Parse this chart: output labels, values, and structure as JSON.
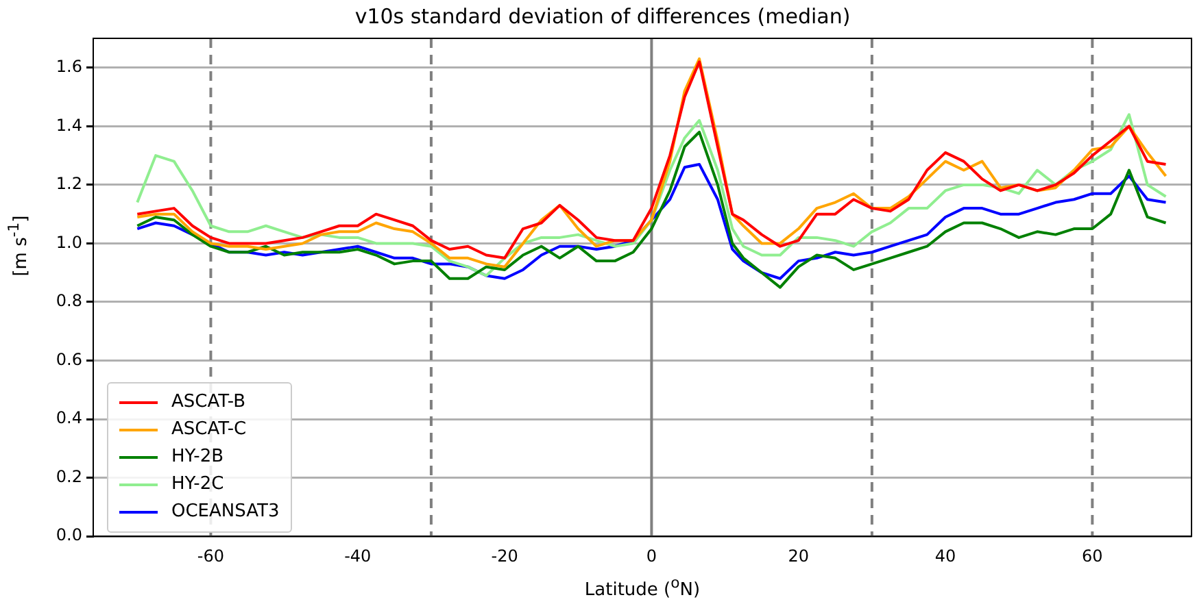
{
  "chart_data": {
    "type": "line",
    "title": "v10s standard deviation of differences (median)",
    "xlabel": "Latitude ($^{o}$N)",
    "ylabel": "[m s$^{-1}$]",
    "x": [
      -70,
      -67.5,
      -65,
      -62.5,
      -60,
      -57.5,
      -55,
      -52.5,
      -50,
      -47.5,
      -45,
      -42.5,
      -40,
      -37.5,
      -35,
      -32.5,
      -30,
      -27.5,
      -25,
      -22.5,
      -20,
      -17.5,
      -15,
      -12.5,
      -10,
      -7.5,
      -5,
      -2.5,
      0,
      2.5,
      4.5,
      6.5,
      9,
      11,
      12.5,
      15,
      17.5,
      20,
      22.5,
      25,
      27.5,
      30,
      32.5,
      35,
      37.5,
      40,
      42.5,
      45,
      47.5,
      50,
      52.5,
      55,
      57.5,
      60,
      62.5,
      65,
      67.5,
      70
    ],
    "series": [
      {
        "name": "ASCAT-B",
        "color": "#ff0000",
        "values": [
          1.1,
          1.11,
          1.12,
          1.06,
          1.02,
          1.0,
          1.0,
          1.0,
          1.01,
          1.02,
          1.04,
          1.06,
          1.06,
          1.1,
          1.08,
          1.06,
          1.01,
          0.98,
          0.99,
          0.96,
          0.95,
          1.05,
          1.07,
          1.13,
          1.08,
          1.02,
          1.01,
          1.01,
          1.12,
          1.3,
          1.5,
          1.62,
          1.33,
          1.1,
          1.08,
          1.03,
          0.99,
          1.01,
          1.1,
          1.1,
          1.15,
          1.12,
          1.11,
          1.15,
          1.25,
          1.31,
          1.28,
          1.22,
          1.18,
          1.2,
          1.18,
          1.2,
          1.24,
          1.3,
          1.35,
          1.4,
          1.28,
          1.27
        ]
      },
      {
        "name": "ASCAT-C",
        "color": "#ffa500",
        "values": [
          1.09,
          1.1,
          1.1,
          1.04,
          1.0,
          0.99,
          0.99,
          0.98,
          0.99,
          1.0,
          1.03,
          1.04,
          1.04,
          1.07,
          1.05,
          1.04,
          1.0,
          0.95,
          0.95,
          0.93,
          0.92,
          1.0,
          1.08,
          1.13,
          1.05,
          0.99,
          1.01,
          1.01,
          1.08,
          1.28,
          1.52,
          1.63,
          1.35,
          1.1,
          1.06,
          1.0,
          1.0,
          1.05,
          1.12,
          1.14,
          1.17,
          1.12,
          1.12,
          1.16,
          1.22,
          1.28,
          1.25,
          1.28,
          1.19,
          1.2,
          1.18,
          1.19,
          1.25,
          1.32,
          1.33,
          1.4,
          1.31,
          1.23
        ]
      },
      {
        "name": "HY-2B",
        "color": "#008000",
        "values": [
          1.06,
          1.09,
          1.08,
          1.03,
          0.99,
          0.97,
          0.97,
          0.99,
          0.96,
          0.97,
          0.97,
          0.97,
          0.98,
          0.96,
          0.93,
          0.94,
          0.94,
          0.88,
          0.88,
          0.92,
          0.91,
          0.96,
          0.99,
          0.95,
          0.99,
          0.94,
          0.94,
          0.97,
          1.05,
          1.18,
          1.33,
          1.38,
          1.2,
          1.0,
          0.95,
          0.9,
          0.85,
          0.92,
          0.96,
          0.95,
          0.91,
          0.93,
          0.95,
          0.97,
          0.99,
          1.04,
          1.07,
          1.07,
          1.05,
          1.02,
          1.04,
          1.03,
          1.05,
          1.05,
          1.1,
          1.25,
          1.09,
          1.07
        ]
      },
      {
        "name": "HY-2C",
        "color": "#90ee90",
        "values": [
          1.14,
          1.3,
          1.28,
          1.18,
          1.06,
          1.04,
          1.04,
          1.06,
          1.04,
          1.02,
          1.03,
          1.02,
          1.02,
          1.0,
          1.0,
          1.0,
          0.99,
          0.94,
          0.92,
          0.89,
          0.95,
          1.0,
          1.02,
          1.02,
          1.03,
          1.01,
          0.99,
          1.0,
          1.08,
          1.25,
          1.36,
          1.42,
          1.25,
          1.05,
          0.99,
          0.96,
          0.96,
          1.02,
          1.02,
          1.01,
          0.99,
          1.04,
          1.07,
          1.12,
          1.12,
          1.18,
          1.2,
          1.2,
          1.19,
          1.17,
          1.25,
          1.2,
          1.25,
          1.28,
          1.32,
          1.44,
          1.2,
          1.16
        ]
      },
      {
        "name": "OCEANSAT3",
        "color": "#0000ff",
        "values": [
          1.05,
          1.07,
          1.06,
          1.03,
          1.0,
          0.97,
          0.97,
          0.96,
          0.97,
          0.96,
          0.97,
          0.98,
          0.99,
          0.97,
          0.95,
          0.95,
          0.93,
          0.93,
          0.92,
          0.89,
          0.88,
          0.91,
          0.96,
          0.99,
          0.99,
          0.98,
          0.99,
          1.01,
          1.08,
          1.15,
          1.26,
          1.27,
          1.15,
          0.98,
          0.94,
          0.9,
          0.88,
          0.94,
          0.95,
          0.97,
          0.96,
          0.97,
          0.99,
          1.01,
          1.03,
          1.09,
          1.12,
          1.12,
          1.1,
          1.1,
          1.12,
          1.14,
          1.15,
          1.17,
          1.17,
          1.23,
          1.15,
          1.14
        ]
      }
    ],
    "xlim": [
      -76,
      73.5
    ],
    "xticks": [
      -60,
      -40,
      -20,
      0,
      20,
      40,
      60
    ],
    "ylim": [
      0,
      1.7
    ],
    "yticks": [
      {
        "value": 0,
        "label": "0.0"
      },
      0.2,
      0.4,
      0.6,
      0.8,
      {
        "value": 1,
        "label": "1.0"
      },
      1.2,
      1.4,
      1.6
    ],
    "grid": "y",
    "legend": "bottom left",
    "marker": "none",
    "line_style": "solid",
    "ref_lines": [
      {
        "axis": "x",
        "value": -60,
        "color": "#808080",
        "line_style": "dashed"
      },
      {
        "axis": "x",
        "value": -30,
        "color": "#808080",
        "line_style": "dashed"
      },
      {
        "axis": "x",
        "value": 0,
        "color": "#808080",
        "line_style": "solid"
      },
      {
        "axis": "x",
        "value": 30,
        "color": "#808080",
        "line_style": "dashed"
      },
      {
        "axis": "x",
        "value": 60,
        "color": "#808080",
        "line_style": "dashed"
      }
    ]
  }
}
